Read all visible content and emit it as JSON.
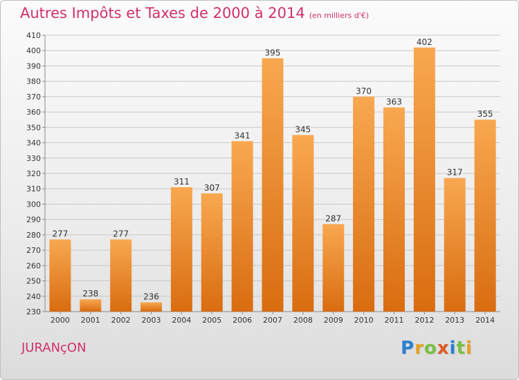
{
  "title": "Autres Impôts et Taxes de 2000 à 2014",
  "subtitle": "(en milliers d'€)",
  "commune": "JURANçON",
  "logo": {
    "letters": [
      "P",
      "r",
      "o",
      "x",
      "i",
      "t",
      "i"
    ],
    "colors": [
      "#2a7fd4",
      "#e8a020",
      "#7ac043",
      "#e05a20",
      "#2a7fd4",
      "#7ac043",
      "#e8a020"
    ]
  },
  "colors": {
    "bar_light": "#f8a850",
    "bar_dark": "#d96c10",
    "accent_text": "#d0306c"
  },
  "chart_data": {
    "type": "bar",
    "categories": [
      "2000",
      "2001",
      "2002",
      "2003",
      "2004",
      "2005",
      "2006",
      "2007",
      "2008",
      "2009",
      "2010",
      "2011",
      "2012",
      "2013",
      "2014"
    ],
    "values": [
      277,
      238,
      277,
      236,
      311,
      307,
      341,
      395,
      345,
      287,
      370,
      363,
      402,
      317,
      355
    ],
    "title": "Autres Impôts et Taxes de 2000 à 2014",
    "xlabel": "",
    "ylabel": "",
    "ylim": [
      230,
      410
    ],
    "yticks": [
      230,
      240,
      250,
      260,
      270,
      280,
      290,
      300,
      310,
      320,
      330,
      340,
      350,
      360,
      370,
      380,
      390,
      400,
      410
    ],
    "grid": true
  }
}
